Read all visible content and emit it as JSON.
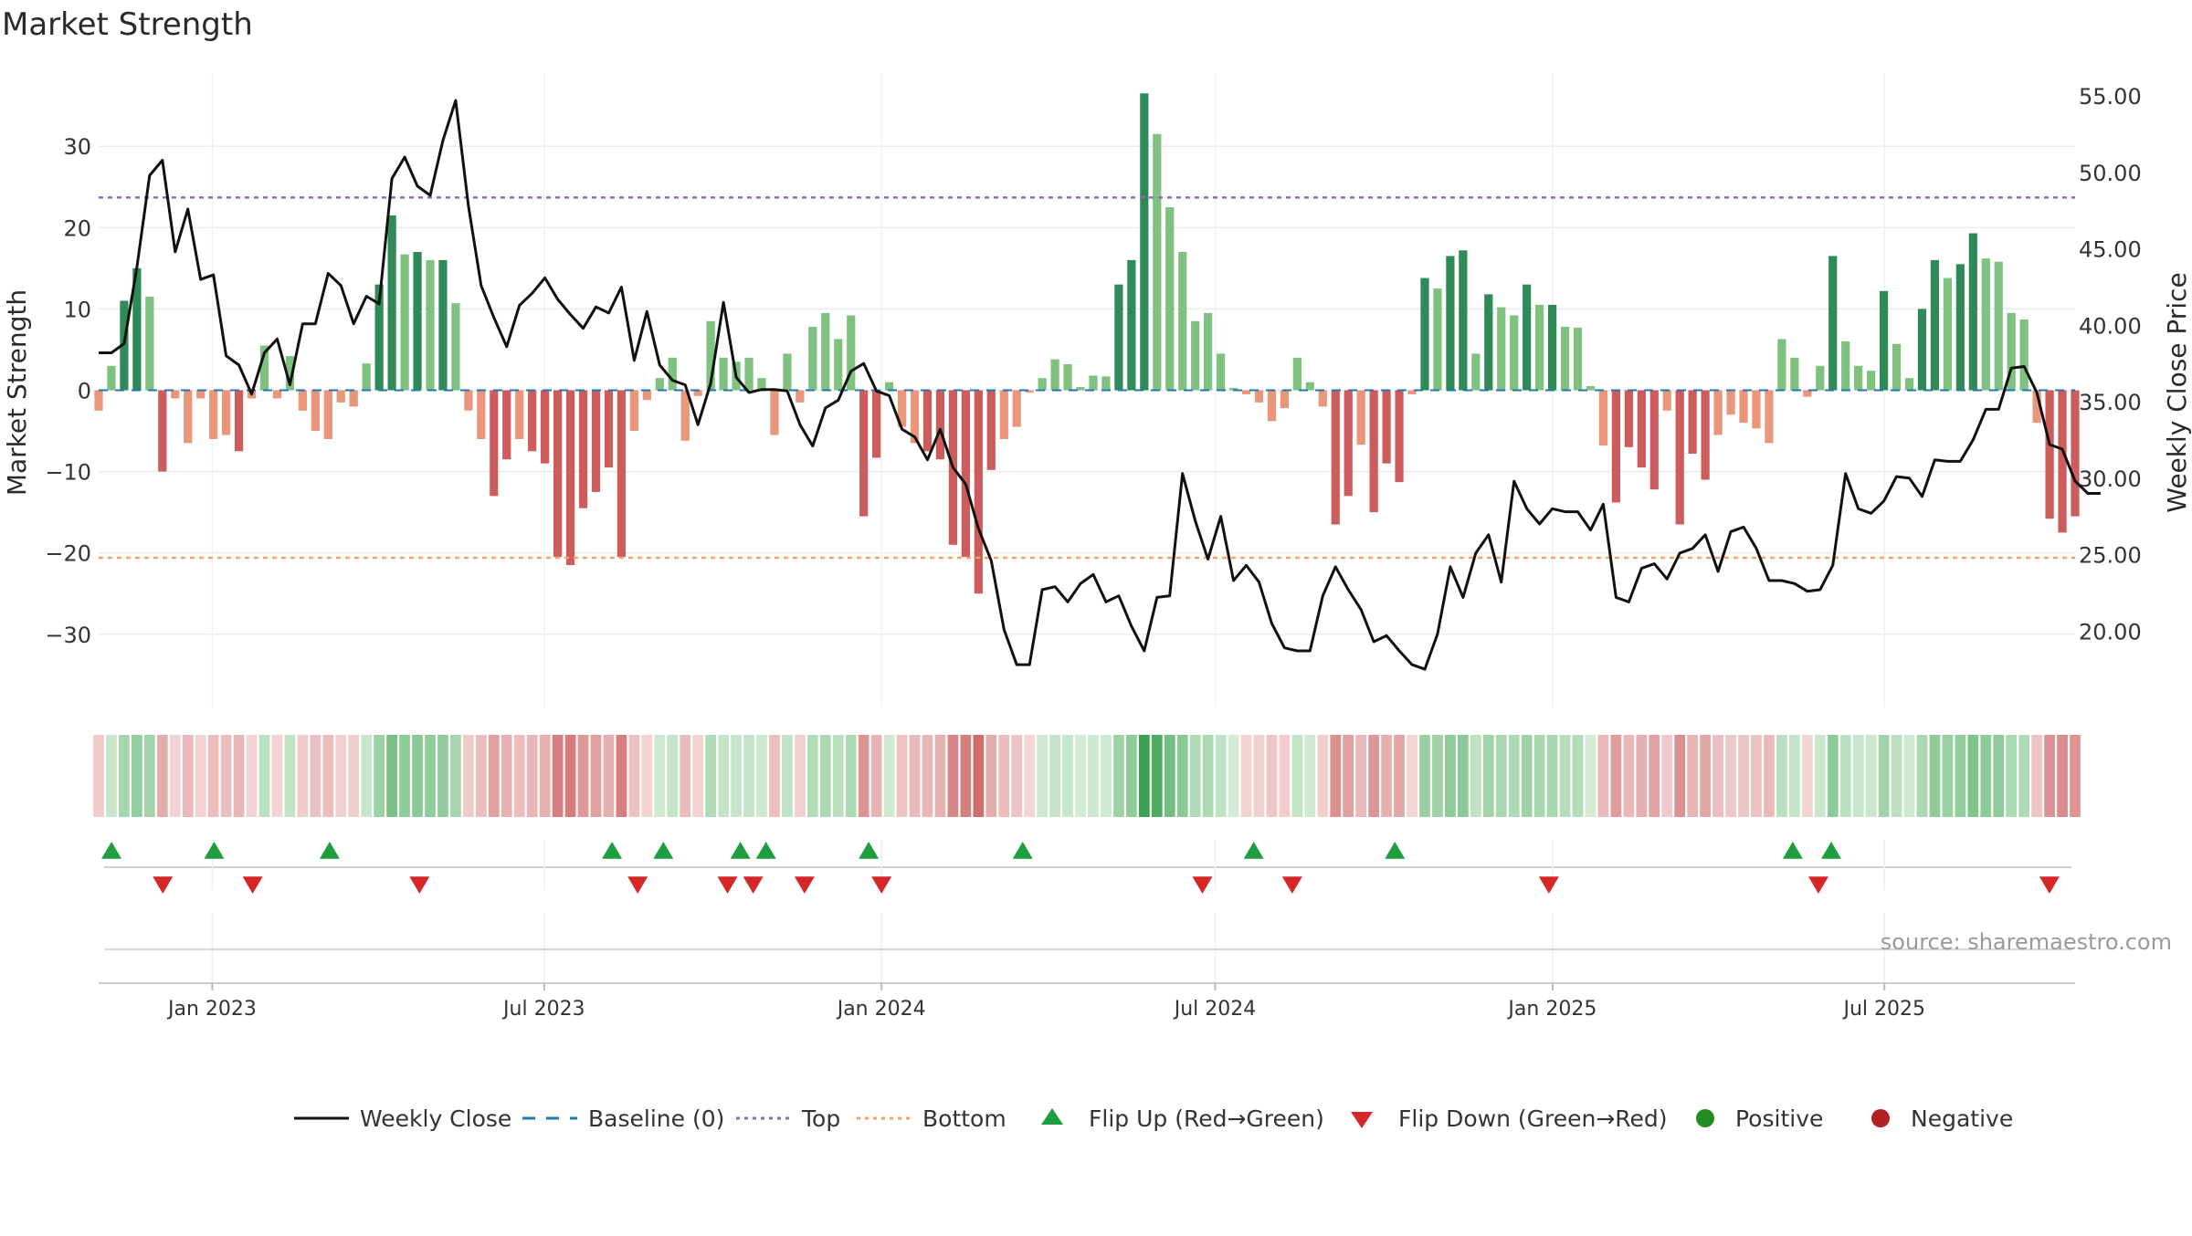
{
  "chart_data": {
    "type": "bar",
    "title": "Market Strength",
    "ylabel": "Market Strength",
    "y2label": "Weekly Close Price",
    "ylim": [
      -39,
      39
    ],
    "y2lim": [
      15.0,
      56.5
    ],
    "yticks": [
      -30,
      -20,
      -10,
      0,
      10,
      20,
      30
    ],
    "ytick_labels": [
      "−30",
      "−20",
      "−10",
      "0",
      "10",
      "20",
      "30"
    ],
    "y2ticks": [
      20,
      25,
      30,
      35,
      40,
      45,
      50,
      55
    ],
    "y2tick_labels": [
      "20.00",
      "25.00",
      "30.00",
      "35.00",
      "40.00",
      "45.00",
      "50.00",
      "55.00"
    ],
    "x_start": "2022-10-31",
    "x_end": "2025-10-13",
    "xticks": [
      "2023-01-01",
      "2023-07-01",
      "2024-01-01",
      "2024-07-01",
      "2025-01-01",
      "2025-07-01"
    ],
    "xtick_labels": [
      "Jan 2023",
      "Jul 2023",
      "Jan 2024",
      "Jul 2024",
      "Jan 2025",
      "Jul 2025"
    ],
    "top_level": 23.7,
    "bottom_level": -20.6,
    "baseline": 0,
    "grid": true,
    "legend_position": "bottom",
    "source": "source: sharemaestro.com",
    "colors": {
      "pos_strong": "#2e8b57",
      "pos_weak": "#7fc17f",
      "neg_strong": "#cd5c5c",
      "neg_weak": "#e9967a",
      "close_line": "#111111",
      "baseline": "#1f77b4",
      "top": "#9467bd",
      "bottom": "#f4a460",
      "flip_up": "#1e9e3e",
      "flip_down": "#d62728",
      "positive": "#228b22",
      "negative": "#b22222"
    },
    "legend": [
      {
        "label": "Weekly Close",
        "kind": "line"
      },
      {
        "label": "Baseline (0)",
        "kind": "dash"
      },
      {
        "label": "Top",
        "kind": "dot-top"
      },
      {
        "label": "Bottom",
        "kind": "dot-bottom"
      },
      {
        "label": "Flip Up (Red→Green)",
        "kind": "tri-up"
      },
      {
        "label": "Flip Down (Green→Red)",
        "kind": "tri-down"
      },
      {
        "label": "Positive",
        "kind": "circle-pos"
      },
      {
        "label": "Negative",
        "kind": "circle-neg"
      }
    ],
    "strength": [
      -2.5,
      3,
      11,
      15,
      11.5,
      -10,
      -1,
      -6.5,
      -1,
      -6,
      -5.5,
      -7.5,
      -1,
      5.5,
      -1,
      4.2,
      -2.5,
      -5,
      -6,
      -1.5,
      -2,
      3.3,
      13,
      21.5,
      16.7,
      17,
      16,
      16,
      10.7,
      -2.5,
      -6,
      -13,
      -8.5,
      -6,
      -7.5,
      -9,
      -20.5,
      -21.5,
      -14.5,
      -12.5,
      -9.5,
      -20.5,
      -5,
      -1.2,
      1.5,
      4,
      -6.2,
      -0.7,
      8.5,
      4,
      3.5,
      4,
      1.5,
      -5.5,
      4.5,
      -1.5,
      7.8,
      9.5,
      6.3,
      9.2,
      -15.5,
      -8.3,
      1,
      -4.5,
      -6.5,
      -7.5,
      -8.5,
      -19,
      -20.5,
      -25,
      -9.8,
      -6,
      -4.5,
      -0.3,
      1.5,
      3.8,
      3.2,
      0.4,
      1.8,
      1.7,
      13,
      16,
      36.5,
      31.5,
      22.5,
      17,
      8.5,
      9.5,
      4.5,
      0.3,
      -0.5,
      -1.5,
      -3.8,
      -2.2,
      4,
      1,
      -2,
      -16.5,
      -13,
      -6.7,
      -15,
      -9,
      -11.3,
      -0.5,
      13.8,
      12.5,
      16.5,
      17.2,
      4.5,
      11.8,
      10.2,
      9.2,
      13,
      10.5,
      10.5,
      7.8,
      7.7,
      0.5,
      -6.8,
      -13.8,
      -7,
      -9.5,
      -12.2,
      -2.5,
      -16.5,
      -7.8,
      -11,
      -5.5,
      -3,
      -4,
      -4.7,
      -6.5,
      6.3,
      4,
      -0.8,
      3,
      16.5,
      6,
      3,
      2.4,
      12.2,
      5.7,
      1.5,
      10,
      16,
      13.8,
      15.5,
      19.3,
      16.2,
      15.8,
      9.5,
      8.7,
      -4,
      -15.8,
      -17.5,
      -15.5
    ],
    "close": [
      38.2,
      38.2,
      38.8,
      43.8,
      49.8,
      50.8,
      44.8,
      47.6,
      43.0,
      43.3,
      38.0,
      37.4,
      35.5,
      38.2,
      39.1,
      36.1,
      40.1,
      40.1,
      43.4,
      42.6,
      40.1,
      41.9,
      41.4,
      49.6,
      51.0,
      49.1,
      48.5,
      52.1,
      54.7,
      47.8,
      42.6,
      40.5,
      38.6,
      41.3,
      42.1,
      43.1,
      41.7,
      40.7,
      39.8,
      41.2,
      40.8,
      42.5,
      37.7,
      40.9,
      37.4,
      36.4,
      36.1,
      33.5,
      36.2,
      41.5,
      36.6,
      35.6,
      35.8,
      35.8,
      35.7,
      33.5,
      32.1,
      34.6,
      35.1,
      37.0,
      37.5,
      35.7,
      35.4,
      33.2,
      32.7,
      31.2,
      33.2,
      30.7,
      29.6,
      26.7,
      24.6,
      20.1,
      17.8,
      17.8,
      22.7,
      22.9,
      21.9,
      23.1,
      23.7,
      21.9,
      22.3,
      20.3,
      18.7,
      22.2,
      22.3,
      30.3,
      27.2,
      24.7,
      27.5,
      23.3,
      24.3,
      23.2,
      20.5,
      18.9,
      18.7,
      18.7,
      22.3,
      24.2,
      22.7,
      21.4,
      19.3,
      19.7,
      18.7,
      17.8,
      17.5,
      19.8,
      24.2,
      22.2,
      25.1,
      26.3,
      23.2,
      29.8,
      28.0,
      27.0,
      28.0,
      27.8,
      27.8,
      26.6,
      28.3,
      22.2,
      21.9,
      24.1,
      24.4,
      23.4,
      25.1,
      25.4,
      26.3,
      23.9,
      26.5,
      26.8,
      25.4,
      23.3,
      23.3,
      23.1,
      22.6,
      22.7,
      24.3,
      30.3,
      28.0,
      27.7,
      28.5,
      30.1,
      30.0,
      28.8,
      31.2,
      31.1,
      31.1,
      32.5,
      34.5,
      34.5,
      37.2,
      37.3,
      35.6,
      32.2,
      31.9,
      29.8,
      29.0,
      29.0
    ],
    "flip_up_dates": [
      "2022-11-07",
      "2023-01-02",
      "2023-03-06",
      "2023-08-07",
      "2023-09-04",
      "2023-10-16",
      "2023-10-30",
      "2023-12-25",
      "2024-03-18",
      "2024-07-22",
      "2024-10-07",
      "2025-05-12",
      "2025-06-02"
    ],
    "flip_down_dates": [
      "2022-12-05",
      "2023-01-23",
      "2023-04-24",
      "2023-08-21",
      "2023-10-09",
      "2023-10-23",
      "2023-11-20",
      "2024-01-01",
      "2024-06-24",
      "2024-08-12",
      "2024-12-30",
      "2025-05-26",
      "2025-09-29"
    ]
  }
}
